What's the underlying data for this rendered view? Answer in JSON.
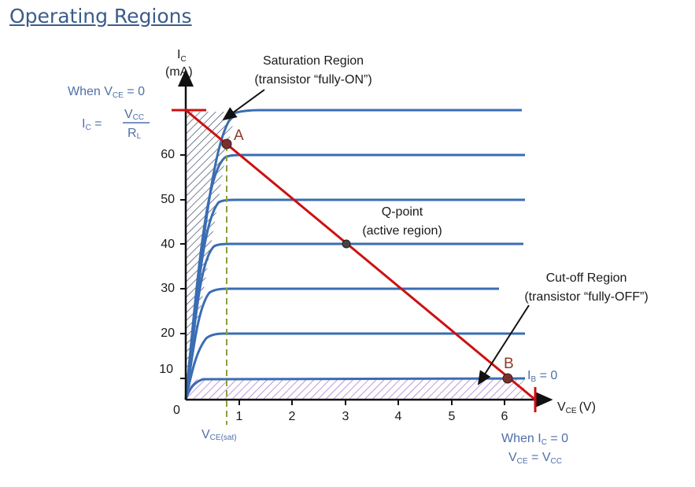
{
  "page": {
    "link_text": "Operating Regions"
  },
  "diagram": {
    "y_axis": {
      "label_main": "I",
      "label_sub": "C",
      "unit": "(mA)"
    },
    "x_axis": {
      "label_main": "V",
      "label_sub": "CE",
      "unit": "(V)"
    },
    "origin": "0",
    "y_ticks": [
      "10",
      "20",
      "30",
      "40",
      "50",
      "60"
    ],
    "x_ticks": [
      "1",
      "2",
      "3",
      "4",
      "5",
      "6"
    ],
    "saturation": {
      "title": "Saturation Region",
      "subtitle": "(transistor “fully-ON”)"
    },
    "qpoint": {
      "title": "Q-point",
      "subtitle": "(active region)"
    },
    "cutoff": {
      "title": "Cut-off Region",
      "subtitle": "(transistor “fully-OFF”)"
    },
    "point_a": "A",
    "point_b": "B",
    "ib_label": {
      "main": "I",
      "sub": "B",
      "rest": " = 0"
    },
    "left_note": {
      "line1_prefix": "When V",
      "line1_sub": "CE",
      "line1_suffix": " = 0",
      "ic_main": "I",
      "ic_sub": "C",
      "equals": " =",
      "num_main": "V",
      "num_sub": "CC",
      "den_main": "R",
      "den_sub": "L"
    },
    "vce_sat": {
      "main": "V",
      "sub": "CE(sat)"
    },
    "bottom_note": {
      "line1_prefix": "When I",
      "line1_sub": "C",
      "line1_suffix": " = 0",
      "line2_main": "V",
      "line2_sub": "CE",
      "line2_eq": " = V",
      "line2_sub2": "CC"
    },
    "colors": {
      "curves": "#3a6db3",
      "load_line": "#cc1111",
      "saturation_hatch": "#3d4a63",
      "cutoff_hatch": "#a070c8",
      "vce_sat_dash": "#8aa040",
      "point_fill": "#7a2f2f"
    }
  }
}
